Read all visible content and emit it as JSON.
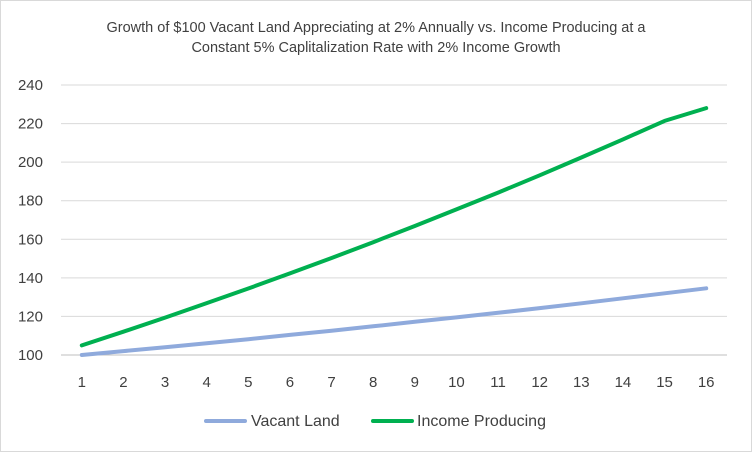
{
  "chart_data": {
    "type": "line",
    "title_lines": [
      "Growth of $100  Vacant Land Appreciating at 2% Annually vs. Income Producing at a",
      "Constant 5% Caplitalization Rate with 2% Income Growth"
    ],
    "x": [
      1,
      2,
      3,
      4,
      5,
      6,
      7,
      8,
      9,
      10,
      11,
      12,
      13,
      14,
      15,
      16
    ],
    "ylim": [
      100,
      240
    ],
    "yticks": [
      100,
      120,
      140,
      160,
      180,
      200,
      220,
      240
    ],
    "grid": true,
    "legend_position": "bottom",
    "series": [
      {
        "name": "Vacant Land",
        "color": "#8faadc",
        "values": [
          100,
          102,
          104,
          106.1,
          108.2,
          110.4,
          112.6,
          114.9,
          117.2,
          119.5,
          121.9,
          124.3,
          126.8,
          129.4,
          132.0,
          134.6
        ]
      },
      {
        "name": "Income Producing",
        "color": "#00b050",
        "values": [
          105,
          112.1,
          119.4,
          126.9,
          134.5,
          142.3,
          150.3,
          158.5,
          166.9,
          175.5,
          184.2,
          193.2,
          202.4,
          211.8,
          221.4,
          228.0
        ]
      }
    ]
  }
}
